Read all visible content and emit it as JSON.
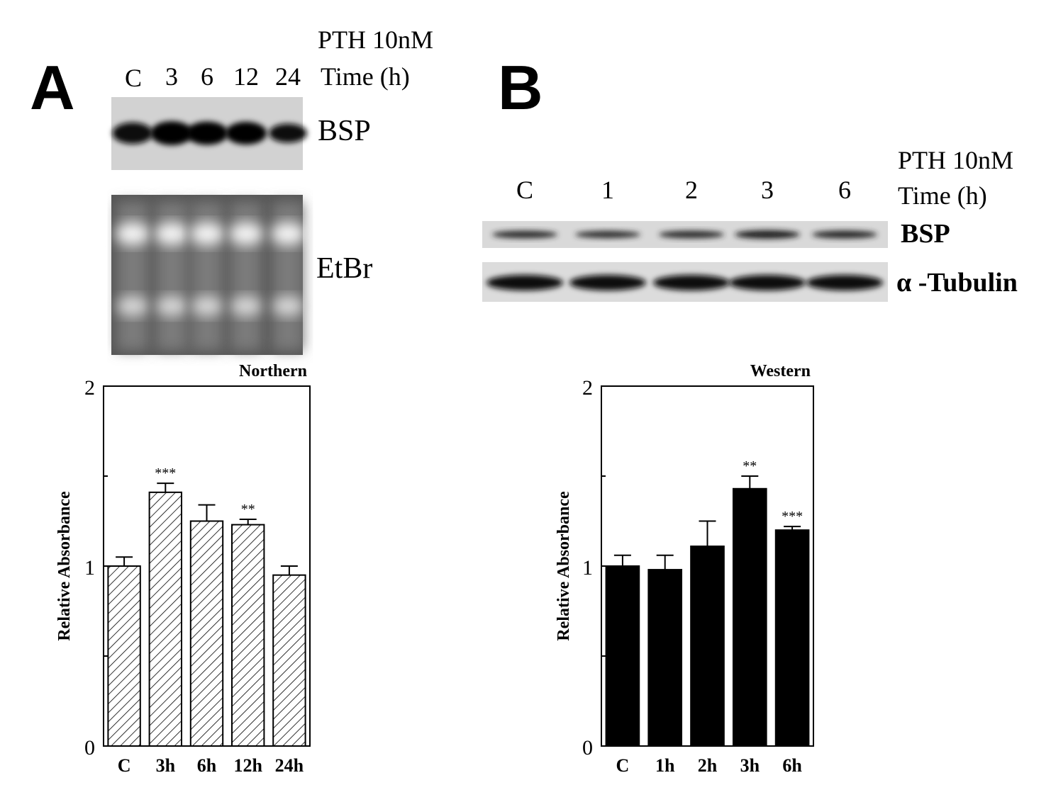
{
  "colors": {
    "panel_b_bars": "#000000",
    "panel_a_bar_fill": "#ffffff",
    "panel_a_hatch": "#000000",
    "blot_background": "#cfcfcf",
    "etbr_background": "#4a4a4a"
  },
  "panel_a": {
    "letter": "A",
    "treatment": "PTH 10nM",
    "time_label": "Time (h)",
    "lanes": [
      "C",
      "3",
      "6",
      "12",
      "24"
    ],
    "blot_bsp_label": "BSP",
    "blot_etbr_label": "EtBr",
    "bsp_band_intensity": [
      0.8,
      1.0,
      0.95,
      0.9,
      0.6
    ]
  },
  "panel_b": {
    "letter": "B",
    "treatment": "PTH 10nM",
    "time_label": "Time (h)",
    "lanes": [
      "C",
      "1",
      "2",
      "3",
      "6"
    ],
    "blot_bsp_label": "BSP",
    "blot_tubulin_label": "α -Tubulin",
    "bsp_band_intensity": [
      0.6,
      0.55,
      0.6,
      0.75,
      0.65
    ]
  },
  "chart_data": [
    {
      "type": "bar",
      "title": "Northern",
      "xlabel": "",
      "ylabel": "Relative Absorbance",
      "categories": [
        "C",
        "3h",
        "6h",
        "12h",
        "24h"
      ],
      "values": [
        1.0,
        1.41,
        1.25,
        1.23,
        0.95
      ],
      "errors": [
        0.05,
        0.05,
        0.09,
        0.03,
        0.05
      ],
      "significance": [
        "",
        "***",
        "",
        "**",
        ""
      ],
      "ylim": [
        0,
        2
      ],
      "yticks": [
        "0",
        "1",
        "2"
      ],
      "bar_style": "hatched",
      "grid": false,
      "legend": "none"
    },
    {
      "type": "bar",
      "title": "Western",
      "xlabel": "",
      "ylabel": "Relative Absorbance",
      "categories": [
        "C",
        "1h",
        "2h",
        "3h",
        "6h"
      ],
      "values": [
        1.0,
        0.98,
        1.11,
        1.43,
        1.2
      ],
      "errors": [
        0.06,
        0.08,
        0.14,
        0.07,
        0.02
      ],
      "significance": [
        "",
        "",
        "",
        "**",
        "***"
      ],
      "ylim": [
        0,
        2
      ],
      "yticks": [
        "0",
        "1",
        "2"
      ],
      "bar_style": "solid",
      "grid": false,
      "legend": "none"
    }
  ]
}
